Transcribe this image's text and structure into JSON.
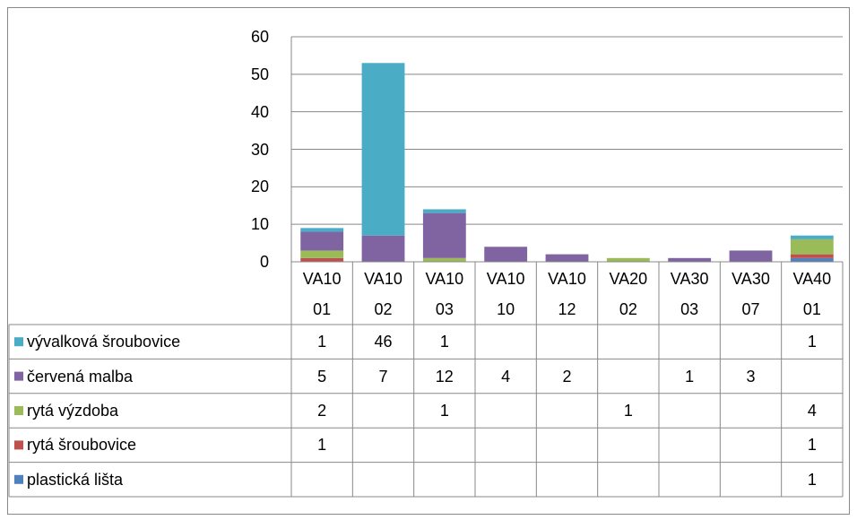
{
  "chart_data": {
    "type": "stacked_bar",
    "categories": [
      "VA1001",
      "VA1002",
      "VA1003",
      "VA1010",
      "VA1012",
      "VA2002",
      "VA3003",
      "VA3007",
      "VA4001"
    ],
    "series": [
      {
        "name": "plastická lišta",
        "color": "#4f81bd",
        "values": [
          null,
          null,
          null,
          null,
          null,
          null,
          null,
          null,
          1
        ]
      },
      {
        "name": "rytá šroubovice",
        "color": "#c0504d",
        "values": [
          1,
          null,
          null,
          null,
          null,
          null,
          null,
          null,
          1
        ]
      },
      {
        "name": "rytá výzdoba",
        "color": "#9bbb59",
        "values": [
          2,
          null,
          1,
          null,
          null,
          1,
          null,
          null,
          4
        ]
      },
      {
        "name": "červená malba",
        "color": "#8064a2",
        "values": [
          5,
          7,
          12,
          4,
          2,
          null,
          1,
          3,
          null
        ]
      },
      {
        "name": "vývalková šroubovice",
        "color": "#4bacc6",
        "values": [
          1,
          46,
          1,
          null,
          null,
          null,
          null,
          null,
          1
        ]
      }
    ],
    "ylim": [
      0,
      60
    ],
    "yticks": [
      0,
      10,
      20,
      30,
      40,
      50,
      60
    ],
    "grid": true,
    "data_table": true
  }
}
